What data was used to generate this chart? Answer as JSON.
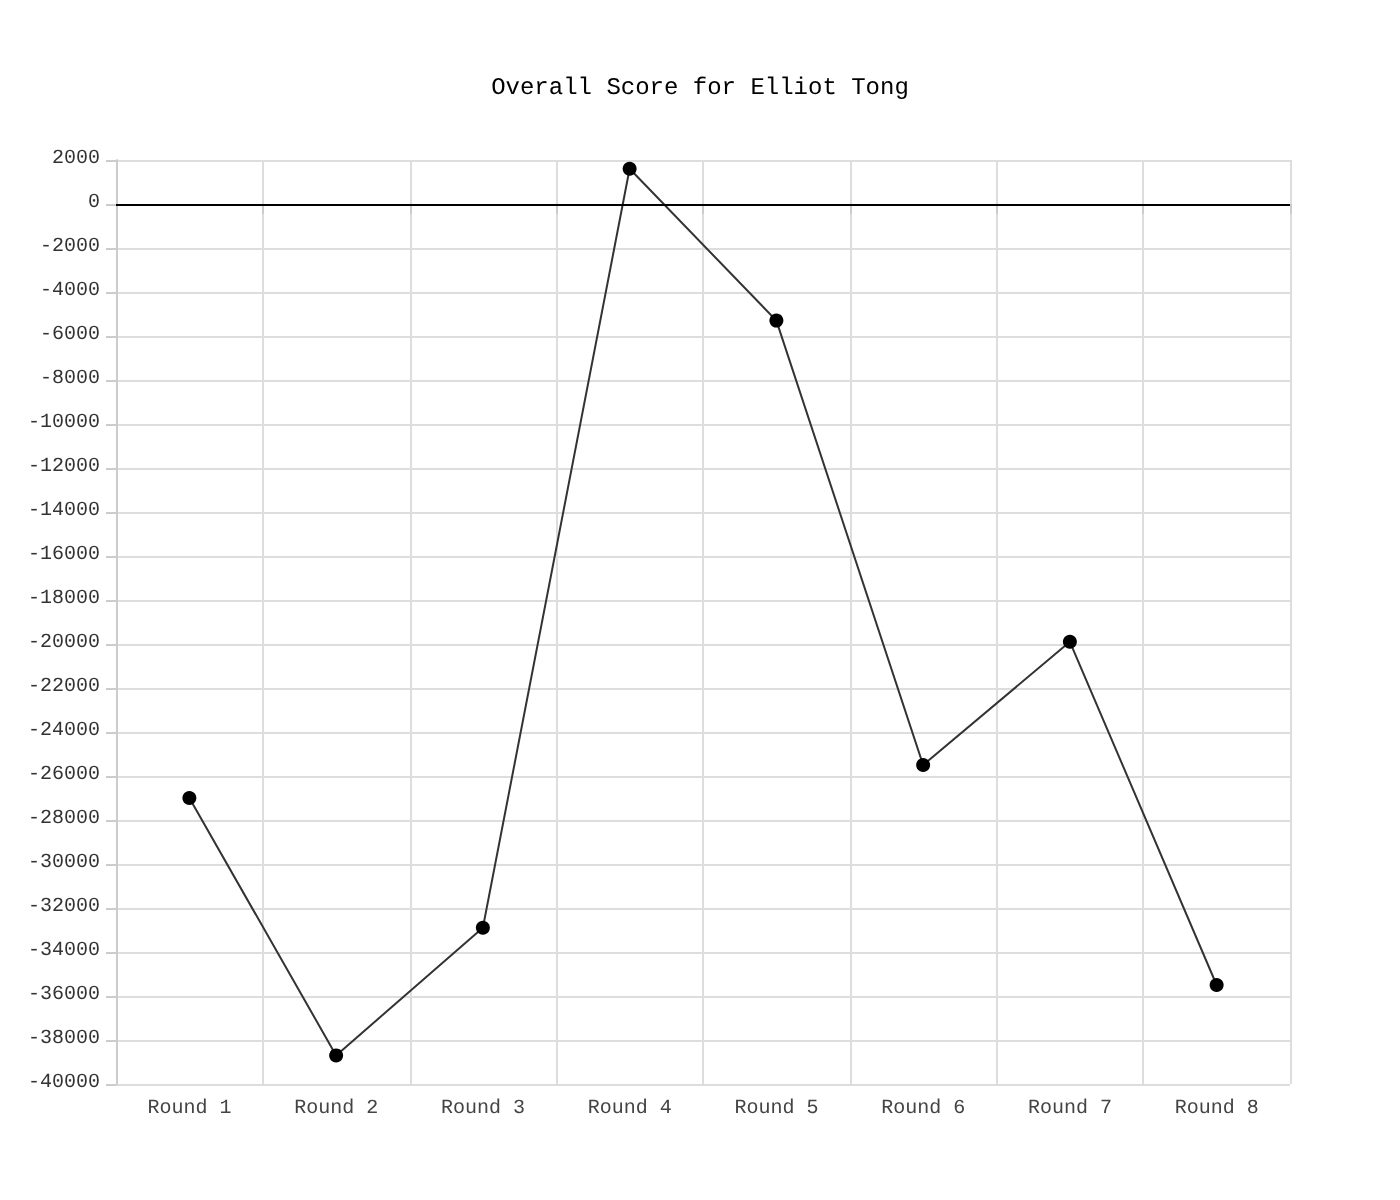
{
  "chart_data": {
    "type": "line",
    "title": "Overall Score for Elliot Tong",
    "categories": [
      "Round 1",
      "Round 2",
      "Round 3",
      "Round 4",
      "Round 5",
      "Round 6",
      "Round 7",
      "Round 8"
    ],
    "series": [
      {
        "color": "#333333",
        "values": [
          -27000,
          -38700,
          -32900,
          1600,
          -5300,
          -25500,
          -19900,
          -35500
        ]
      }
    ],
    "ylim": [
      -40000,
      2000
    ],
    "yticks": [
      -40000,
      -38000,
      -36000,
      -34000,
      -32000,
      -30000,
      -28000,
      -26000,
      -24000,
      -22000,
      -20000,
      -18000,
      -16000,
      -14000,
      -12000,
      -10000,
      -8000,
      -6000,
      -4000,
      -2000,
      0,
      2000
    ],
    "ref_lines": [
      {
        "axis": "y",
        "value": 0,
        "color": "#000000"
      }
    ],
    "grid": true,
    "marker": "circle",
    "line_style": "solid"
  }
}
